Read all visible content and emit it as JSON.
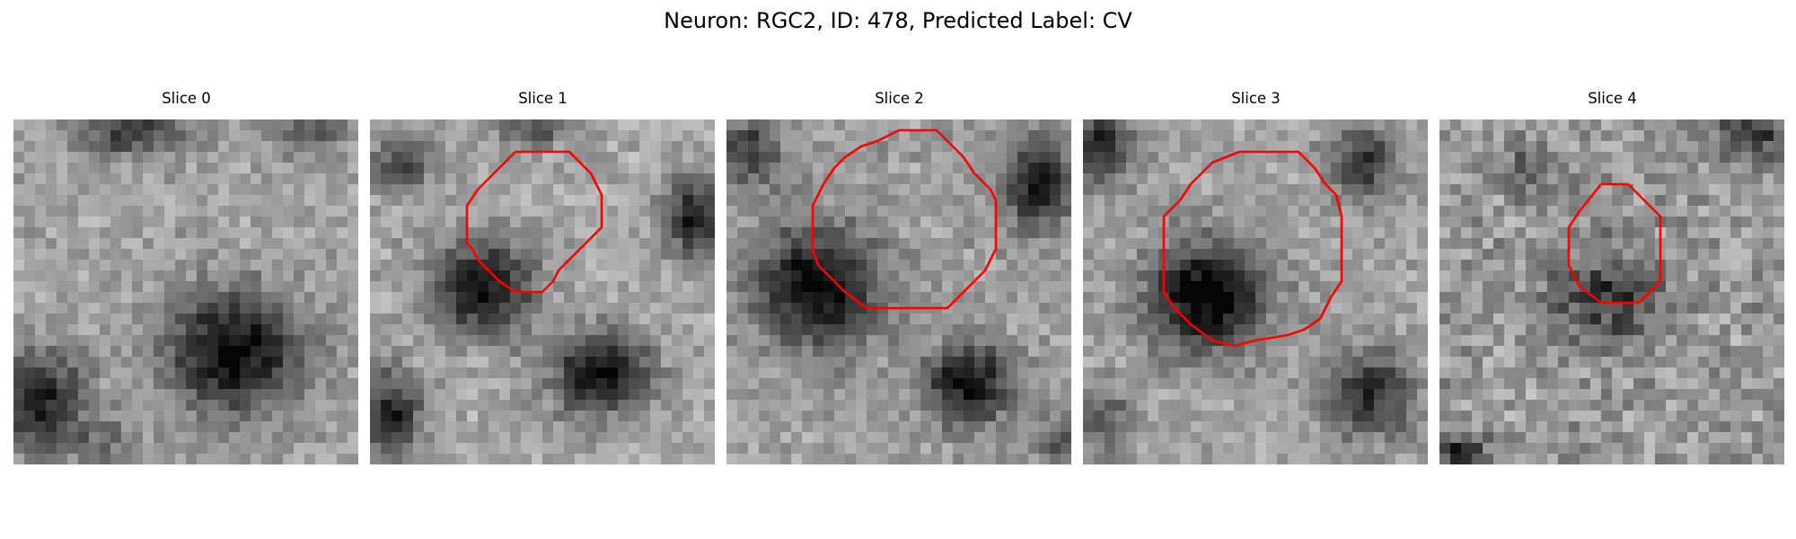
{
  "figure": {
    "title": "Neuron: RGC2, ID: 478, Predicted Label: CV"
  },
  "panels": [
    {
      "title": "Slice 0",
      "has_contour": false
    },
    {
      "title": "Slice 1",
      "has_contour": true
    },
    {
      "title": "Slice 2",
      "has_contour": true
    },
    {
      "title": "Slice 3",
      "has_contour": true
    },
    {
      "title": "Slice 4",
      "has_contour": true
    }
  ],
  "style": {
    "contour_color": "#ff0000",
    "colormap": "gray"
  }
}
